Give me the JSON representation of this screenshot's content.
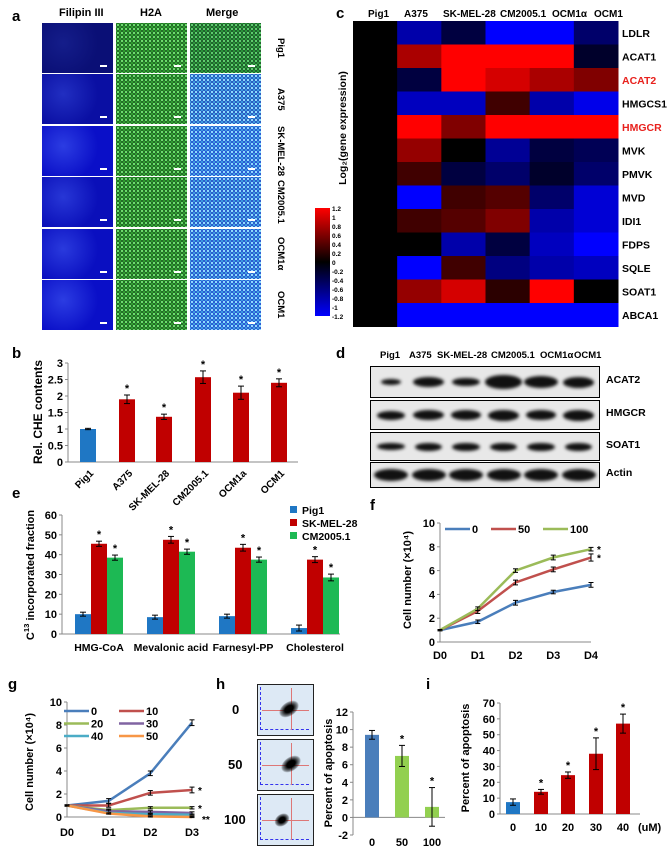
{
  "panel_labels": {
    "a": "a",
    "b": "b",
    "c": "c",
    "d": "d",
    "e": "e",
    "f": "f",
    "g": "g",
    "h": "h",
    "i": "i"
  },
  "panel_a": {
    "columns": [
      "Filipin III",
      "H2A",
      "Merge"
    ],
    "rows": [
      "Pig1",
      "A375",
      "SK-MEL-28",
      "CM2005.1",
      "OCM1α",
      "OCM1"
    ],
    "colors": {
      "filipin": "#1a2bd6",
      "h2a": "#2fbf2f",
      "merge": "#3aa7e0"
    }
  },
  "panel_d": {
    "columns": [
      "Pig1",
      "A375",
      "SK-MEL-28",
      "CM2005.1",
      "OCM1α",
      "OCM1"
    ],
    "blots": [
      "ACAT2",
      "HMGCR",
      "SOAT1",
      "Actin"
    ]
  },
  "panel_h": {
    "flow_labels": [
      "0",
      "50",
      "100"
    ]
  },
  "chart_data": [
    {
      "id": "c",
      "type": "heatmap",
      "columns": [
        "Pig1",
        "A375",
        "SK-MEL-28",
        "CM2005.1",
        "OCM1α",
        "OCM1"
      ],
      "rows": [
        "LDLR",
        "ACAT1",
        "ACAT2",
        "HMGCS1",
        "HMGCR",
        "MVK",
        "PMVK",
        "MVD",
        "IDI1",
        "FDPS",
        "SQLE",
        "SOAT1",
        "ABCA1"
      ],
      "highlight_rows": [
        "ACAT2",
        "HMGCR"
      ],
      "highlight_color": "#e8211d",
      "values": [
        [
          0,
          -0.8,
          -0.3,
          -1.2,
          -1.2,
          -0.5
        ],
        [
          0,
          0.8,
          1.2,
          1.2,
          1.2,
          -0.2
        ],
        [
          0,
          -0.3,
          1.2,
          1.0,
          0.8,
          0.6
        ],
        [
          0,
          -0.9,
          -0.9,
          0.3,
          -0.8,
          -1.1
        ],
        [
          0,
          1.2,
          0.6,
          1.2,
          1.2,
          1.2
        ],
        [
          0,
          0.7,
          0,
          -0.7,
          -0.3,
          -0.4
        ],
        [
          0,
          0.3,
          -0.3,
          -0.5,
          -0.2,
          -0.5
        ],
        [
          0,
          -1.2,
          0.3,
          0.4,
          -0.5,
          -1.0
        ],
        [
          0,
          0.3,
          0.4,
          0.6,
          -0.8,
          -1.0
        ],
        [
          0,
          0,
          -0.8,
          -0.3,
          -0.9,
          -1.2
        ],
        [
          0,
          -1.2,
          0.3,
          -0.6,
          -0.8,
          -0.9
        ],
        [
          0,
          0.7,
          1.0,
          0.2,
          1.2,
          0
        ],
        [
          0,
          -1.2,
          -1.2,
          -1.2,
          -1.2,
          -1.2
        ]
      ],
      "colorbar_ticks": [
        "1.2",
        "1",
        "0.8",
        "0.6",
        "0.4",
        "0.2",
        "0",
        "-0.2",
        "-0.4",
        "-0.6",
        "-0.8",
        "-1",
        "-1.2"
      ],
      "colorbar_label": "Log₂(gene expression)",
      "range": [
        -1.2,
        1.2
      ],
      "colors": {
        "low": "#0000ff",
        "mid": "#000000",
        "high": "#ff0000"
      }
    },
    {
      "id": "b",
      "type": "bar",
      "categories": [
        "Pig1",
        "A375",
        "SK-MEL-28",
        "CM2005.1",
        "OCM1a",
        "OCM1"
      ],
      "values": [
        1.0,
        1.9,
        1.37,
        2.57,
        2.1,
        2.4
      ],
      "errors": [
        0.02,
        0.13,
        0.08,
        0.19,
        0.2,
        0.12
      ],
      "significance": [
        "",
        "*",
        "*",
        "*",
        "*",
        "*"
      ],
      "colors": [
        "#1f77c4",
        "#c00000",
        "#c00000",
        "#c00000",
        "#c00000",
        "#c00000"
      ],
      "ylabel": "Rel. CHE contents",
      "ylim": [
        0,
        3
      ],
      "yticks": [
        "0",
        "0.5",
        "1",
        "1.5",
        "2",
        "2.5",
        "3"
      ]
    },
    {
      "id": "e",
      "type": "bar",
      "categories": [
        "HMG-CoA",
        "Mevalonic acid",
        "Farnesyl-PP",
        "Cholesterol"
      ],
      "series": [
        {
          "name": "Pig1",
          "values": [
            10,
            8.5,
            9,
            3
          ],
          "errors": [
            1,
            1,
            1,
            1.5
          ],
          "significance": [
            "",
            "",
            "",
            ""
          ],
          "color": "#1f77c4"
        },
        {
          "name": "SK-MEL-28",
          "values": [
            45.5,
            47.5,
            43.5,
            37.5
          ],
          "errors": [
            1.3,
            1.7,
            1.7,
            1.5
          ],
          "significance": [
            "*",
            "*",
            "*",
            "*"
          ],
          "color": "#c00000"
        },
        {
          "name": "CM2005.1",
          "values": [
            38.5,
            41.5,
            37.5,
            28.5
          ],
          "errors": [
            1.3,
            1.3,
            1.3,
            1.7
          ],
          "significance": [
            "*",
            "*",
            "*",
            "*"
          ],
          "color": "#1db954"
        }
      ],
      "ylabel_prefix": "C",
      "ylabel_sup": "13",
      "ylabel_rest": " incorporated fraction",
      "ylim": [
        0,
        60
      ],
      "yticks": [
        "0",
        "10",
        "20",
        "30",
        "40",
        "50",
        "60"
      ],
      "legend": "top-right"
    },
    {
      "id": "f",
      "type": "line",
      "x": [
        "D0",
        "D1",
        "D2",
        "D3",
        "D4"
      ],
      "series": [
        {
          "name": "0",
          "values": [
            1,
            1.7,
            3.3,
            4.2,
            4.8
          ],
          "errors": [
            0.05,
            0.15,
            0.2,
            0.15,
            0.2
          ],
          "color": "#4a7ebb",
          "significance": ""
        },
        {
          "name": "50",
          "values": [
            1,
            2.6,
            5.0,
            6.1,
            7.1
          ],
          "errors": [
            0.05,
            0.2,
            0.2,
            0.2,
            0.3
          ],
          "color": "#c0504d",
          "significance": "*"
        },
        {
          "name": "100",
          "values": [
            1,
            2.8,
            6.0,
            7.1,
            7.8
          ],
          "errors": [
            0.05,
            0.15,
            0.15,
            0.2,
            0.15
          ],
          "color": "#9bbb59",
          "significance": "*"
        }
      ],
      "ylabel": "Cell number (×10⁴)",
      "ylim": [
        0,
        10
      ],
      "yticks": [
        "0",
        "2",
        "4",
        "6",
        "8",
        "10"
      ],
      "legend": "top"
    },
    {
      "id": "g",
      "type": "line",
      "x": [
        "D0",
        "D1",
        "D2",
        "D3"
      ],
      "series": [
        {
          "name": "0",
          "values": [
            1,
            1.4,
            3.8,
            8.2
          ],
          "errors": [
            0.05,
            0.2,
            0.2,
            0.25
          ],
          "color": "#4a7ebb",
          "significance": ""
        },
        {
          "name": "10",
          "values": [
            1,
            1.0,
            2.1,
            2.35
          ],
          "errors": [
            0.05,
            0.15,
            0.2,
            0.25
          ],
          "color": "#c0504d",
          "significance": "*"
        },
        {
          "name": "20",
          "values": [
            1,
            0.6,
            0.8,
            0.8
          ],
          "errors": [
            0.05,
            0.1,
            0.1,
            0.1
          ],
          "color": "#9bbb59",
          "significance": "*"
        },
        {
          "name": "30",
          "values": [
            1,
            0.5,
            0.45,
            0.35
          ],
          "errors": [
            0.05,
            0.1,
            0.1,
            0.1
          ],
          "color": "#8064a2",
          "significance": ""
        },
        {
          "name": "40",
          "values": [
            1,
            0.35,
            0.25,
            0.2
          ],
          "errors": [
            0.05,
            0.05,
            0.05,
            0.05
          ],
          "color": "#4bacc6",
          "significance": ""
        },
        {
          "name": "50",
          "values": [
            1,
            0.3,
            0.05,
            0
          ],
          "errors": [
            0.05,
            0.05,
            0.05,
            0.05
          ],
          "color": "#f79646",
          "significance": "**"
        }
      ],
      "ylabel": "Cell number (×10⁴)",
      "ylim": [
        0,
        10
      ],
      "yticks": [
        "0",
        "2",
        "4",
        "6",
        "8",
        "10"
      ],
      "legend": "top-left"
    },
    {
      "id": "h",
      "type": "bar",
      "categories": [
        "0",
        "50",
        "100"
      ],
      "values": [
        9.4,
        7.0,
        1.2
      ],
      "errors": [
        0.5,
        1.2,
        2.2
      ],
      "significance": [
        "",
        "*",
        "*"
      ],
      "colors": [
        "#4a7ebb",
        "#92d050",
        "#92d050"
      ],
      "ylabel": "Percent of apoptosis",
      "ylim": [
        -2,
        12
      ],
      "yticks": [
        "-2",
        "0",
        "2",
        "4",
        "6",
        "8",
        "10",
        "12"
      ]
    },
    {
      "id": "i",
      "type": "bar",
      "categories": [
        "0",
        "10",
        "20",
        "30",
        "40"
      ],
      "x_unit": "(uM)",
      "values": [
        7.5,
        14,
        24.5,
        38,
        57
      ],
      "errors": [
        2,
        1.5,
        2,
        10,
        6
      ],
      "significance": [
        "",
        "*",
        "*",
        "*",
        "*"
      ],
      "colors": [
        "#1f77c4",
        "#c00000",
        "#c00000",
        "#c00000",
        "#c00000"
      ],
      "ylabel": "Percent of apoptosis",
      "ylim": [
        0,
        70
      ],
      "yticks": [
        "0",
        "10",
        "20",
        "30",
        "40",
        "50",
        "60",
        "70"
      ]
    }
  ]
}
